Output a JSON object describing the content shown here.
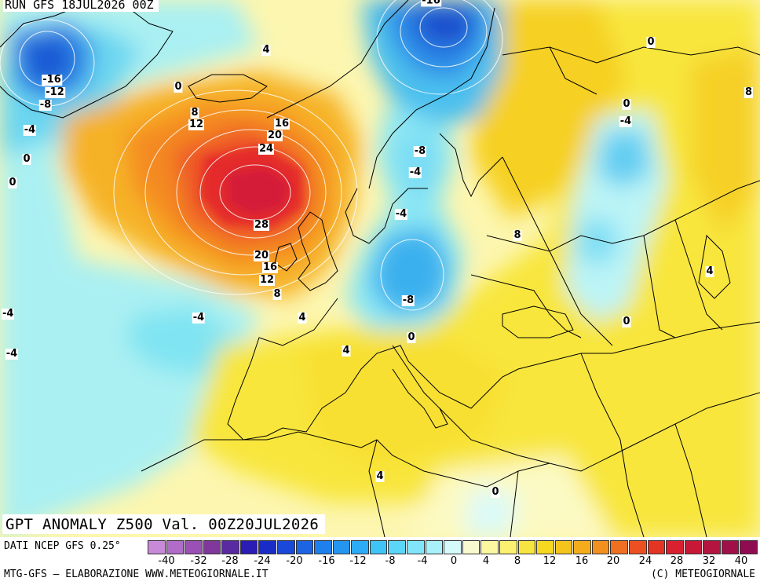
{
  "map": {
    "run_title": "RUN GFS 18JUL2026 00Z",
    "main_title": "GPT ANOMALY Z500 Val. 00Z20JUL2026",
    "contour_labels": [
      {
        "text": "-16"
      },
      {
        "text": "-12"
      },
      {
        "text": "-8"
      },
      {
        "text": "-4"
      },
      {
        "text": "0"
      },
      {
        "text": "0"
      },
      {
        "text": "0"
      },
      {
        "text": "8"
      },
      {
        "text": "12"
      },
      {
        "text": "4"
      },
      {
        "text": "16"
      },
      {
        "text": "20"
      },
      {
        "text": "24"
      },
      {
        "text": "28"
      },
      {
        "text": "20"
      },
      {
        "text": "16"
      },
      {
        "text": "12"
      },
      {
        "text": "8"
      },
      {
        "text": "4"
      },
      {
        "text": "-4"
      },
      {
        "text": "-4"
      },
      {
        "text": "-4"
      },
      {
        "text": "4"
      },
      {
        "text": "-16"
      },
      {
        "text": "-8"
      },
      {
        "text": "-4"
      },
      {
        "text": "-4"
      },
      {
        "text": "-8"
      },
      {
        "text": "0"
      },
      {
        "text": "8"
      },
      {
        "text": "0"
      },
      {
        "text": "-4"
      },
      {
        "text": "0"
      },
      {
        "text": "8"
      },
      {
        "text": "4"
      },
      {
        "text": "0"
      },
      {
        "text": "4"
      },
      {
        "text": "0"
      }
    ],
    "colors": {
      "deep_negative": "#1a3cc8",
      "negative": "#2f8fe8",
      "light_negative": "#8fe8f0",
      "neutral": "#eafcfc",
      "light_positive": "#fcfaa8",
      "positive": "#f6e21c",
      "warm": "#f5a623",
      "hot": "#e8372c",
      "very_hot": "#c8103a"
    }
  },
  "legend": {
    "source_label": "DATI NCEP GFS 0.25°",
    "credit_left": "MTG-GFS — ELABORAZIONE WWW.METEOGIORNALE.IT",
    "credit_right": "(C) METEOGIORNALE",
    "scale_colors": [
      "#c88ad8",
      "#b06cc8",
      "#9a50b4",
      "#80389c",
      "#5a2aa0",
      "#2a1cb4",
      "#1a2cc8",
      "#1a48d8",
      "#1c64e4",
      "#1e80ec",
      "#2496f0",
      "#2cacf4",
      "#40c4f6",
      "#5cd6f8",
      "#80e4fa",
      "#a8f0fa",
      "#d4fafa",
      "#fafad0",
      "#fcf8a0",
      "#fcf070",
      "#f8e440",
      "#f6d820",
      "#f4c41c",
      "#f4ac1c",
      "#f29020",
      "#f07022",
      "#ec5022",
      "#e43424",
      "#d82030",
      "#c81838",
      "#b41440",
      "#a01048",
      "#900c50"
    ],
    "tick_labels": [
      "-40",
      "-32",
      "-28",
      "-24",
      "-20",
      "-16",
      "-12",
      "-8",
      "-4",
      "0",
      "4",
      "8",
      "12",
      "16",
      "20",
      "24",
      "28",
      "32",
      "40"
    ]
  }
}
